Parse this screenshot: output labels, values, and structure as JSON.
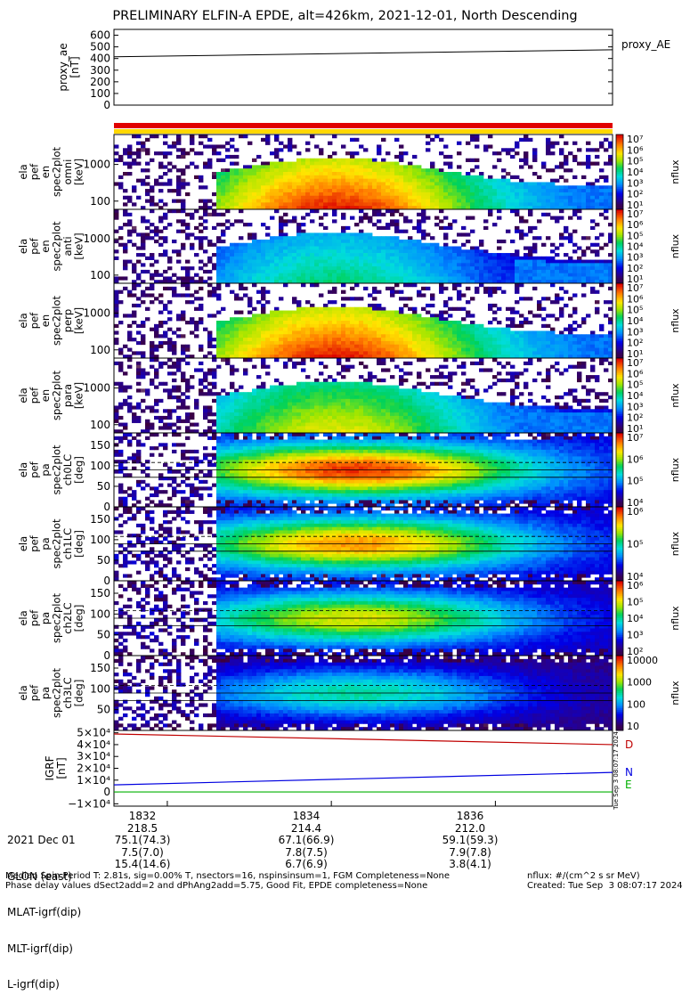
{
  "title": "PRELIMINARY ELFIN-A EPDE, alt=426km, 2021-12-01, North Descending",
  "colors": {
    "red_bar": "#e00000",
    "yellow_bar": "#ffd800",
    "series_D": "#c00000",
    "series_N": "#0000e0",
    "series_E": "#00b000"
  },
  "chart_data": [
    {
      "type": "line",
      "ylabel_lines": [
        "proxy_ae",
        "[nT]"
      ],
      "yticks": [
        "600",
        "500",
        "400",
        "300",
        "200",
        "100",
        "0"
      ],
      "legend": "proxy_AE",
      "ylim": [
        0,
        650
      ],
      "x": [
        0,
        1
      ],
      "values": [
        415,
        475
      ]
    },
    {
      "type": "heatmap",
      "ylabel_lines": [
        "ela",
        "pef",
        "en",
        "spec2plot",
        "omni",
        "[keV]"
      ],
      "yticks": [
        "1000",
        "100"
      ],
      "cbar_ticks": [
        "10⁷",
        "10⁶",
        "10⁵",
        "10⁴",
        "10³",
        "10²",
        "10¹"
      ],
      "cbar_label": "nflux",
      "kind": "energy",
      "peak": 1.0
    },
    {
      "type": "heatmap",
      "ylabel_lines": [
        "ela",
        "pef",
        "en",
        "spec2plot",
        "anti",
        "[keV]"
      ],
      "yticks": [
        "1000",
        "100"
      ],
      "cbar_ticks": [
        "10⁷",
        "10⁶",
        "10⁵",
        "10⁴",
        "10³",
        "10²",
        "10¹"
      ],
      "cbar_label": "nflux",
      "kind": "energy",
      "peak": 0.55
    },
    {
      "type": "heatmap",
      "ylabel_lines": [
        "ela",
        "pef",
        "en",
        "spec2plot",
        "perp",
        "[keV]"
      ],
      "yticks": [
        "1000",
        "100"
      ],
      "cbar_ticks": [
        "10⁷",
        "10⁶",
        "10⁵",
        "10⁴",
        "10³",
        "10²",
        "10¹"
      ],
      "cbar_label": "nflux",
      "kind": "energy",
      "peak": 1.0
    },
    {
      "type": "heatmap",
      "ylabel_lines": [
        "ela",
        "pef",
        "en",
        "spec2plot",
        "para",
        "[keV]"
      ],
      "yticks": [
        "1000",
        "100"
      ],
      "cbar_ticks": [
        "10⁷",
        "10⁶",
        "10⁵",
        "10⁴",
        "10³",
        "10²",
        "10¹"
      ],
      "cbar_label": "nflux",
      "kind": "energy",
      "peak": 0.75
    },
    {
      "type": "heatmap",
      "ylabel_lines": [
        "ela",
        "pef",
        "pa",
        "spec2plot",
        "ch0LC",
        "[deg]"
      ],
      "yticks": [
        "150",
        "100",
        "50",
        "0"
      ],
      "cbar_ticks": [
        "10⁷",
        "10⁶",
        "10⁵",
        "10⁴"
      ],
      "cbar_label": "nflux",
      "kind": "pitch",
      "peak": 0.95
    },
    {
      "type": "heatmap",
      "ylabel_lines": [
        "ela",
        "pef",
        "pa",
        "spec2plot",
        "ch1LC",
        "[deg]"
      ],
      "yticks": [
        "150",
        "100",
        "50",
        "0"
      ],
      "cbar_ticks": [
        "10⁶",
        "10⁵",
        "10⁴"
      ],
      "cbar_label": "nflux",
      "kind": "pitch",
      "peak": 0.85
    },
    {
      "type": "heatmap",
      "ylabel_lines": [
        "ela",
        "pef",
        "pa",
        "spec2plot",
        "ch2LC",
        "[deg]"
      ],
      "yticks": [
        "150",
        "100",
        "50",
        "0"
      ],
      "cbar_ticks": [
        "10⁶",
        "10⁵",
        "10⁴",
        "10³",
        "10²"
      ],
      "cbar_label": "nflux",
      "kind": "pitch",
      "peak": 0.72
    },
    {
      "type": "heatmap",
      "ylabel_lines": [
        "ela",
        "pef",
        "pa",
        "spec2plot",
        "ch3LC",
        "[deg]"
      ],
      "yticks": [
        "150",
        "100",
        "50"
      ],
      "cbar_ticks": [
        "10000",
        "1000",
        "100",
        "10"
      ],
      "cbar_label": "nflux",
      "kind": "pitch",
      "peak": 0.5
    },
    {
      "type": "line",
      "ylabel_lines": [
        "IGRF",
        "[nT]"
      ],
      "yticks": [
        "5×10⁴",
        "4×10⁴",
        "3×10⁴",
        "2×10⁴",
        "1×10⁴",
        "0",
        "−1×10⁴"
      ],
      "ylim": [
        -12000,
        52000
      ],
      "x": [
        0,
        1
      ],
      "series": [
        {
          "name": "D",
          "values": [
            49000,
            40000
          ]
        },
        {
          "name": "N",
          "values": [
            6000,
            16500
          ]
        },
        {
          "name": "E",
          "values": [
            0,
            0
          ]
        }
      ],
      "side_text": "Tue Sep  3 08:07:17 2024"
    }
  ],
  "axis": {
    "labels": [
      "2021 Dec 01",
      "GLON (east)",
      "MLAT-igrf(dip)",
      "MLT-igrf(dip)",
      "L-igrf(dip)"
    ],
    "columns": [
      {
        "time": "1832",
        "vals": [
          "218.5",
          "75.1(74.3)",
          "7.5(7.0)",
          "15.4(14.6)"
        ]
      },
      {
        "time": "1834",
        "vals": [
          "214.4",
          "67.1(66.9)",
          "7.8(7.5)",
          "6.7(6.9)"
        ]
      },
      {
        "time": "1836",
        "vals": [
          "212.0",
          "59.1(59.3)",
          "7.9(7.8)",
          "3.8(4.1)"
        ]
      }
    ]
  },
  "footer": {
    "line1": "Median Spin Period T: 2.81s, sig=0.00% T, nsectors=16, nspinsinsum=1, FGM Completeness=None",
    "line2": "Phase delay values dSect2add=2 and dPhAng2add=5.75, Good Fit, EPDE completeness=None",
    "right1": "nflux: #/(cm^2 s sr MeV)",
    "right2": "Created: Tue Sep  3 08:07:17 2024"
  }
}
